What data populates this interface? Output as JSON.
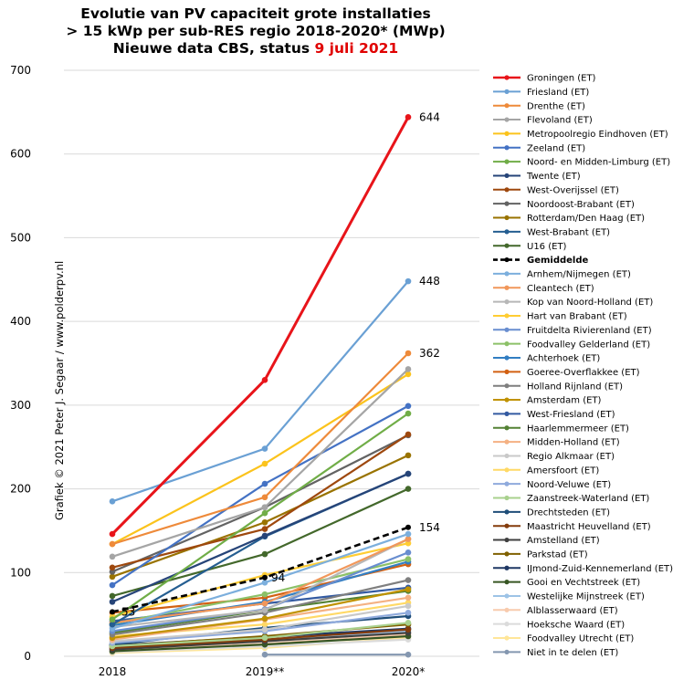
{
  "title": {
    "line1": "Evolutie  van PV capaciteit grote installaties",
    "line2": "> 15 kWp per sub-RES regio 2018-2020* (MWp)",
    "line3_prefix": "Nieuwe data CBS, status ",
    "line3_date": "9 juli  2021"
  },
  "credit": "Grafiek © 2021  Peter J. Segaar / www.polderpv.nl",
  "colors": {
    "title_red": "#e00000",
    "grid": "#d9d9d9",
    "average": "#000000"
  },
  "chart_data": {
    "type": "line",
    "categories": [
      "2018",
      "2019**",
      "2020*"
    ],
    "ylim": [
      0,
      700
    ],
    "yticks": [
      0,
      100,
      200,
      300,
      400,
      500,
      600,
      700
    ],
    "grid": "horizontal",
    "legend_position": "right",
    "series": [
      {
        "name": "Groningen (ET)",
        "color": "#e8141a",
        "values": [
          146,
          330,
          644
        ],
        "label_last": "644",
        "width": 3
      },
      {
        "name": "Friesland (ET)",
        "color": "#6aa0d4",
        "values": [
          185,
          248,
          448
        ],
        "label_last": "448"
      },
      {
        "name": "Drenthe (ET)",
        "color": "#ee8a3a",
        "values": [
          134,
          190,
          362
        ],
        "label_last": "362"
      },
      {
        "name": "Flevoland (ET)",
        "color": "#a5a5a5",
        "values": [
          119,
          178,
          343
        ]
      },
      {
        "name": "Metropoolregio Eindhoven (ET)",
        "color": "#fbc31c",
        "values": [
          134,
          230,
          337
        ]
      },
      {
        "name": "Zeeland (ET)",
        "color": "#4472c4",
        "values": [
          85,
          206,
          299
        ]
      },
      {
        "name": "Noord- en Midden-Limburg (ET)",
        "color": "#70ad47",
        "values": [
          44,
          171,
          290
        ]
      },
      {
        "name": "Twente (ET)",
        "color": "#264478",
        "values": [
          65,
          144,
          218
        ]
      },
      {
        "name": "West-Overijssel (ET)",
        "color": "#9e480e",
        "values": [
          106,
          152,
          265
        ]
      },
      {
        "name": "Noordoost-Brabant (ET)",
        "color": "#636363",
        "values": [
          101,
          178,
          264
        ]
      },
      {
        "name": "Rotterdam/Den Haag (ET)",
        "color": "#997300",
        "values": [
          95,
          160,
          240
        ]
      },
      {
        "name": "West-Brabant (ET)",
        "color": "#255e91",
        "values": [
          38,
          143,
          218
        ]
      },
      {
        "name": "U16 (ET)",
        "color": "#43682b",
        "values": [
          72,
          122,
          200
        ]
      },
      {
        "name": "Gemiddelde",
        "color": "#000000",
        "values": [
          53,
          94,
          154
        ],
        "label_first": "53",
        "label_mid": "94",
        "label_last": "154",
        "dashed": true,
        "width": 2.6
      },
      {
        "name": "Arnhem/Nijmegen (ET)",
        "color": "#7cafdd",
        "values": [
          33,
          88,
          146
        ]
      },
      {
        "name": "Cleantech (ET)",
        "color": "#f1975a",
        "values": [
          40,
          63,
          140
        ]
      },
      {
        "name": "Kop van Noord-Holland (ET)",
        "color": "#b7b7b7",
        "values": [
          35,
          55,
          140
        ]
      },
      {
        "name": "Hart van Brabant (ET)",
        "color": "#ffcd33",
        "values": [
          47,
          97,
          135
        ]
      },
      {
        "name": "Fruitdelta Rivierenland (ET)",
        "color": "#698ed0",
        "values": [
          30,
          56,
          124
        ]
      },
      {
        "name": "Foodvalley Gelderland (ET)",
        "color": "#8cc168",
        "values": [
          39,
          74,
          116
        ]
      },
      {
        "name": "Achterhoek (ET)",
        "color": "#327ec2",
        "values": [
          37,
          65,
          113
        ]
      },
      {
        "name": "Goeree-Overflakkee (ET)",
        "color": "#d26012",
        "values": [
          52,
          70,
          110
        ]
      },
      {
        "name": "Holland Rijnland (ET)",
        "color": "#7f7f7f",
        "values": [
          26,
          52,
          91
        ]
      },
      {
        "name": "Amsterdam (ET)",
        "color": "#c09200",
        "values": [
          22,
          45,
          80
        ]
      },
      {
        "name": "West-Friesland (ET)",
        "color": "#335aa1",
        "values": [
          42,
          63,
          82
        ]
      },
      {
        "name": "Haarlemmermeer (ET)",
        "color": "#548235",
        "values": [
          28,
          55,
          78
        ]
      },
      {
        "name": "Midden-Holland (ET)",
        "color": "#f4b183",
        "values": [
          20,
          44,
          70
        ]
      },
      {
        "name": "Regio Alkmaar (ET)",
        "color": "#c9c9c9",
        "values": [
          18,
          32,
          60
        ]
      },
      {
        "name": "Amersfoort (ET)",
        "color": "#ffd966",
        "values": [
          24,
          38,
          64
        ]
      },
      {
        "name": "Noord-Veluwe (ET)",
        "color": "#8faadc",
        "values": [
          16,
          30,
          52
        ]
      },
      {
        "name": "Zaanstreek-Waterland (ET)",
        "color": "#a9d18e",
        "values": [
          12,
          22,
          40
        ]
      },
      {
        "name": "Drechtsteden (ET)",
        "color": "#1f4e79",
        "values": [
          14,
          34,
          48
        ]
      },
      {
        "name": "Maastricht Heuvelland (ET)",
        "color": "#843c0c",
        "values": [
          10,
          20,
          32
        ]
      },
      {
        "name": "Amstelland (ET)",
        "color": "#404040",
        "values": [
          8,
          18,
          28
        ]
      },
      {
        "name": "Parkstad (ET)",
        "color": "#7f6000",
        "values": [
          12,
          24,
          38
        ]
      },
      {
        "name": "IJmond-Zuid-Kennemerland (ET)",
        "color": "#1f3864",
        "values": [
          13,
          23,
          33
        ]
      },
      {
        "name": "Gooi en Vechtstreek (ET)",
        "color": "#375623",
        "values": [
          6,
          14,
          24
        ]
      },
      {
        "name": "Westelijke Mijnstreek (ET)",
        "color": "#9dc3e6",
        "values": [
          9,
          18,
          30
        ]
      },
      {
        "name": "Alblasserwaard (ET)",
        "color": "#f8cbad",
        "values": [
          7,
          15,
          26
        ]
      },
      {
        "name": "Hoeksche Waard (ET)",
        "color": "#dbdbdb",
        "values": [
          5,
          12,
          20
        ]
      },
      {
        "name": "Foodvalley Utrecht (ET)",
        "color": "#ffe699",
        "values": [
          4,
          10,
          22
        ]
      },
      {
        "name": "Niet in te delen (ET)",
        "color": "#8497b0",
        "values": [
          null,
          2,
          2
        ]
      }
    ]
  }
}
